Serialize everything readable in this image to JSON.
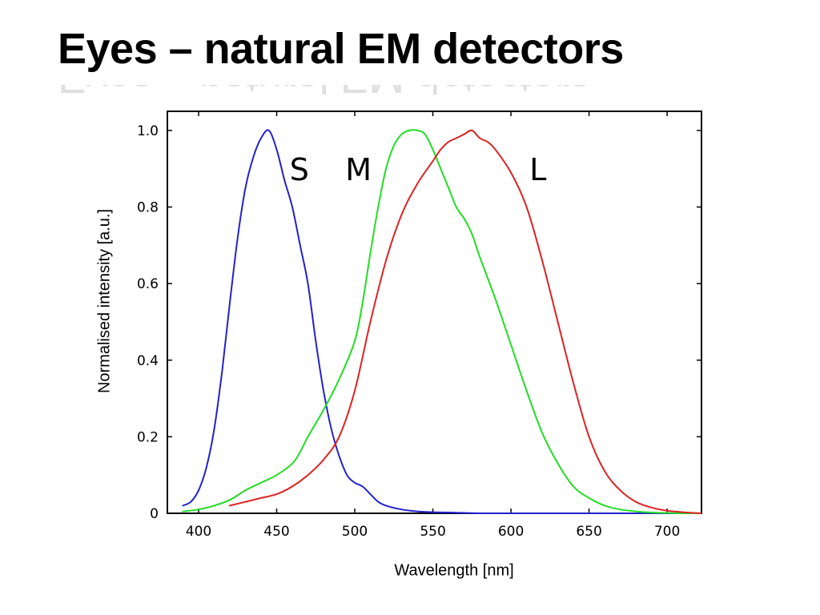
{
  "slide": {
    "title": "Eyes – natural EM detectors"
  },
  "chart_data": {
    "type": "line",
    "title": "",
    "xlabel": "Wavelength [nm]",
    "ylabel": "Normalised intensity [a.u.]",
    "xlim": [
      380,
      722
    ],
    "ylim": [
      0,
      1.05
    ],
    "xticks": [
      400,
      450,
      500,
      550,
      600,
      650,
      700
    ],
    "xtick_labels": [
      "400",
      "450",
      "500",
      "550",
      "600",
      "650",
      "700"
    ],
    "yticks": [
      0,
      0.2,
      0.4,
      0.6,
      0.8,
      1.0
    ],
    "ytick_labels": [
      "0",
      "0.2",
      "0.4",
      "0.6",
      "0.8",
      "1.0"
    ],
    "grid": false,
    "legend": "none",
    "series": [
      {
        "name": "S",
        "color": "#2222cc",
        "x": [
          390,
          395,
          400,
          405,
          410,
          415,
          420,
          425,
          430,
          435,
          440,
          445,
          450,
          455,
          460,
          465,
          470,
          475,
          480,
          485,
          490,
          495,
          500,
          505,
          510,
          515,
          520,
          530,
          540,
          550,
          560,
          570,
          580,
          600,
          650,
          700,
          720
        ],
        "y": [
          0.02,
          0.03,
          0.06,
          0.12,
          0.22,
          0.37,
          0.55,
          0.72,
          0.85,
          0.93,
          0.98,
          1.0,
          0.95,
          0.87,
          0.8,
          0.7,
          0.6,
          0.45,
          0.32,
          0.22,
          0.15,
          0.1,
          0.08,
          0.07,
          0.05,
          0.03,
          0.02,
          0.01,
          0.005,
          0.003,
          0.002,
          0.001,
          0.0,
          0.0,
          0.0,
          0.0,
          0.0
        ]
      },
      {
        "name": "M",
        "color": "#22dd22",
        "x": [
          390,
          400,
          410,
          420,
          430,
          440,
          450,
          460,
          465,
          470,
          480,
          490,
          500,
          505,
          510,
          515,
          520,
          525,
          530,
          535,
          540,
          545,
          550,
          555,
          560,
          565,
          570,
          575,
          580,
          590,
          600,
          610,
          620,
          630,
          640,
          650,
          660,
          670,
          680,
          690,
          700,
          710,
          722
        ],
        "y": [
          0.005,
          0.01,
          0.02,
          0.035,
          0.06,
          0.08,
          0.1,
          0.13,
          0.16,
          0.2,
          0.27,
          0.35,
          0.45,
          0.55,
          0.68,
          0.8,
          0.9,
          0.96,
          0.99,
          1.0,
          1.0,
          0.99,
          0.95,
          0.9,
          0.85,
          0.8,
          0.77,
          0.73,
          0.67,
          0.56,
          0.44,
          0.32,
          0.21,
          0.13,
          0.07,
          0.04,
          0.02,
          0.01,
          0.005,
          0.002,
          0.001,
          0.0,
          0.0
        ]
      },
      {
        "name": "L",
        "color": "#dd2222",
        "x": [
          420,
          430,
          440,
          450,
          460,
          470,
          480,
          490,
          500,
          510,
          520,
          530,
          540,
          550,
          555,
          560,
          565,
          570,
          575,
          580,
          585,
          590,
          600,
          610,
          620,
          630,
          640,
          650,
          660,
          670,
          680,
          690,
          700,
          710,
          722
        ],
        "y": [
          0.02,
          0.03,
          0.04,
          0.05,
          0.07,
          0.1,
          0.14,
          0.2,
          0.32,
          0.5,
          0.66,
          0.78,
          0.86,
          0.92,
          0.95,
          0.97,
          0.98,
          0.99,
          1.0,
          0.98,
          0.97,
          0.95,
          0.89,
          0.8,
          0.66,
          0.5,
          0.34,
          0.2,
          0.11,
          0.06,
          0.03,
          0.015,
          0.007,
          0.003,
          0.0
        ]
      }
    ]
  }
}
